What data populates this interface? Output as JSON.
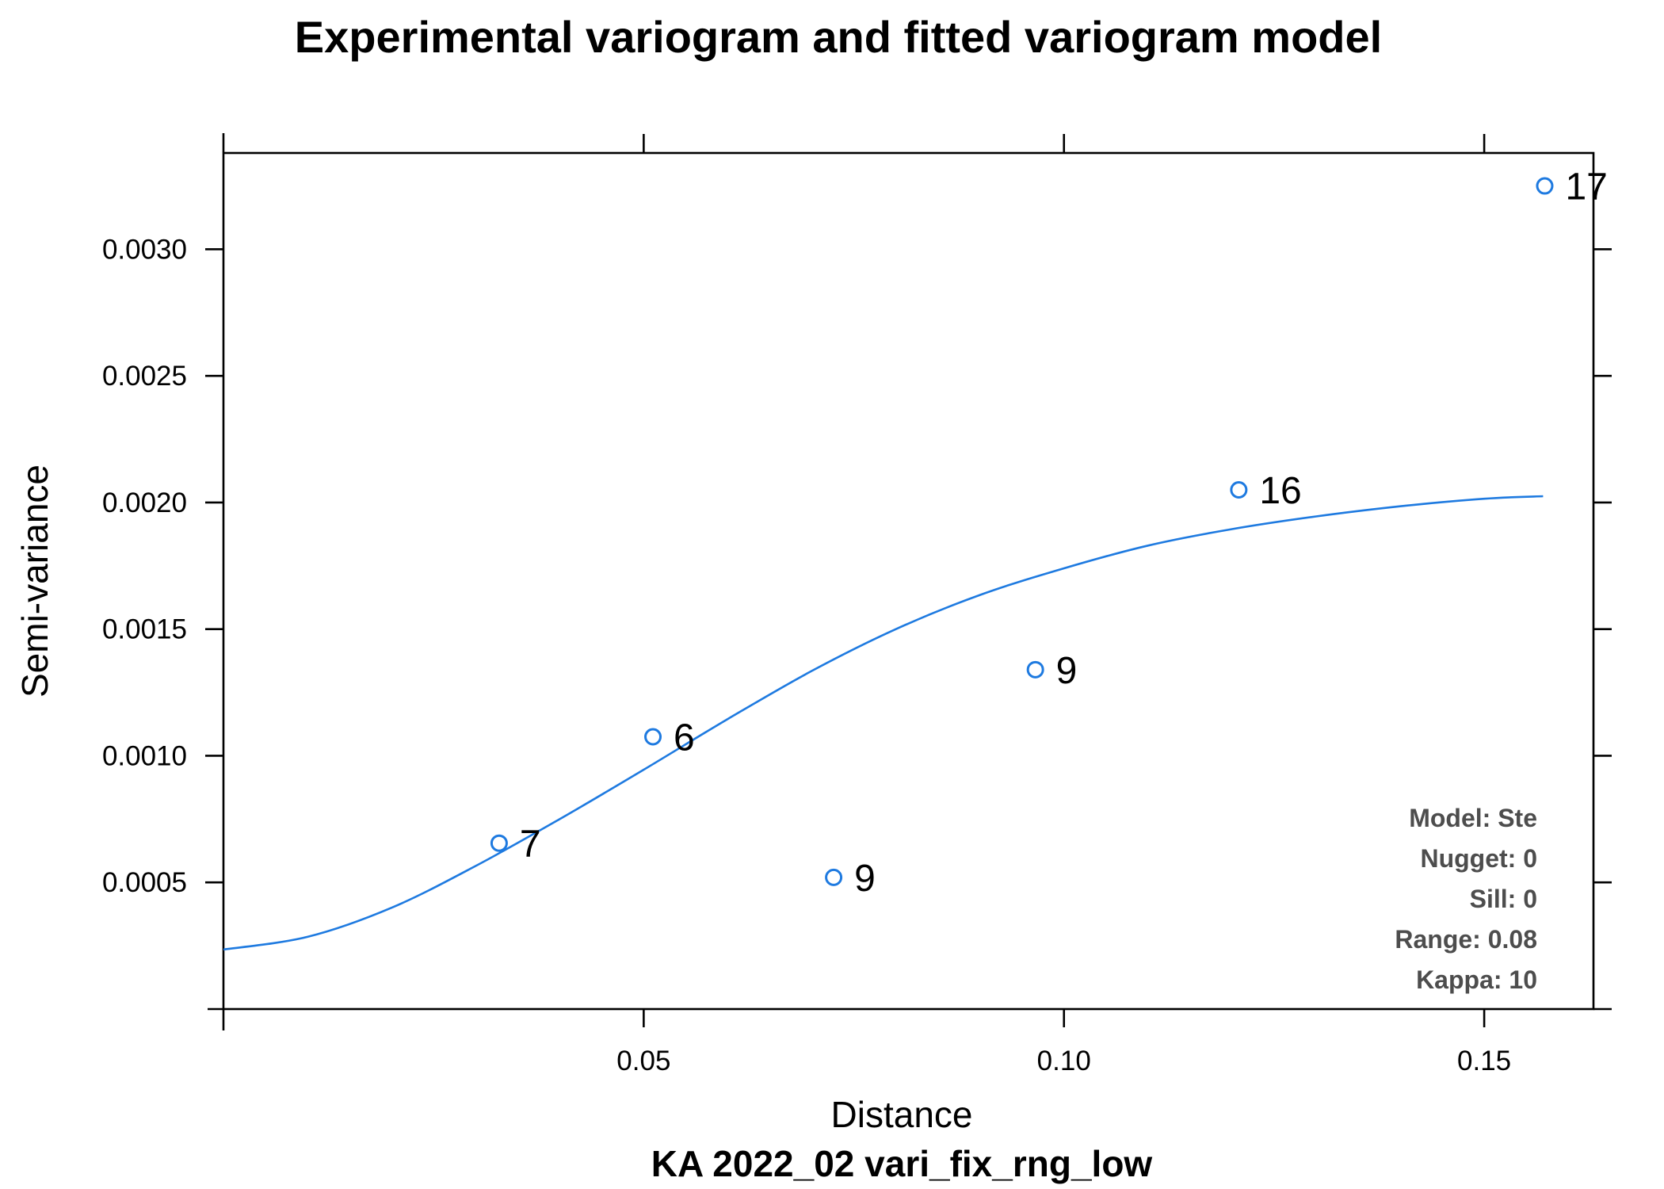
{
  "chart_data": {
    "type": "scatter",
    "title": "Experimental variogram and fitted variogram model",
    "xlabel": "Distance",
    "ylabel": "Semi-variance",
    "subtitle": "KA 2022_02 vari_fix_rng_low",
    "xlim": [
      0.0,
      0.163
    ],
    "ylim": [
      0.0,
      0.00338
    ],
    "x_ticks": [
      0.05,
      0.1,
      0.15
    ],
    "x_tick_labels": [
      "0.05",
      "0.10",
      "0.15"
    ],
    "y_ticks": [
      0.0005,
      0.001,
      0.0015,
      0.002,
      0.0025,
      0.003
    ],
    "y_tick_labels": [
      "0.0005",
      "0.0010",
      "0.0015",
      "0.0020",
      "0.0025",
      "0.0030"
    ],
    "grid": false,
    "points": [
      {
        "x": 0.0328,
        "y": 0.000655,
        "label": "7"
      },
      {
        "x": 0.0511,
        "y": 0.001075,
        "label": "6"
      },
      {
        "x": 0.0726,
        "y": 0.00052,
        "label": "9"
      },
      {
        "x": 0.0966,
        "y": 0.00134,
        "label": "9"
      },
      {
        "x": 0.1208,
        "y": 0.00205,
        "label": "16"
      },
      {
        "x": 0.1572,
        "y": 0.00325,
        "label": "17"
      }
    ],
    "model_curve": {
      "x": [
        0.0,
        0.01,
        0.02,
        0.03,
        0.04,
        0.05,
        0.06,
        0.07,
        0.08,
        0.09,
        0.1,
        0.11,
        0.12,
        0.13,
        0.14,
        0.15,
        0.157
      ],
      "y": [
        0.000235,
        0.000285,
        0.0004,
        0.000565,
        0.00075,
        0.000945,
        0.001145,
        0.001335,
        0.0015,
        0.001635,
        0.00174,
        0.00183,
        0.001895,
        0.001945,
        0.001985,
        0.002015,
        0.002025
      ]
    },
    "model_info": [
      "Model: Ste",
      "Nugget: 0",
      "Sill: 0",
      "Range: 0.08",
      "Kappa: 10"
    ],
    "colors": {
      "points": "#1e7ae0",
      "curve": "#1e7ae0",
      "axes": "#000000",
      "info_text": "#4d4d4d"
    }
  }
}
